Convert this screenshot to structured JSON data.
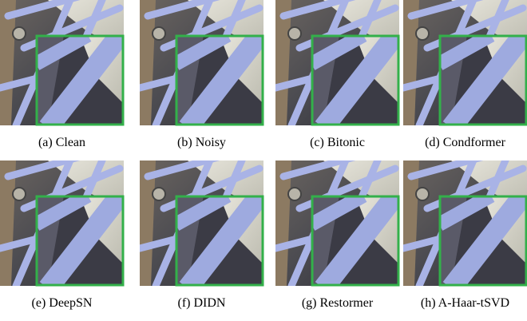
{
  "panels": [
    {
      "caption": "(a) Clean"
    },
    {
      "caption": "(b) Noisy"
    },
    {
      "caption": "(c) Bitonic"
    },
    {
      "caption": "(d) Condformer"
    },
    {
      "caption": "(e) DeepSN"
    },
    {
      "caption": "(f) DIDN"
    },
    {
      "caption": "(g) Restormer"
    },
    {
      "caption": "(h) A-Haar-tSVD"
    }
  ]
}
